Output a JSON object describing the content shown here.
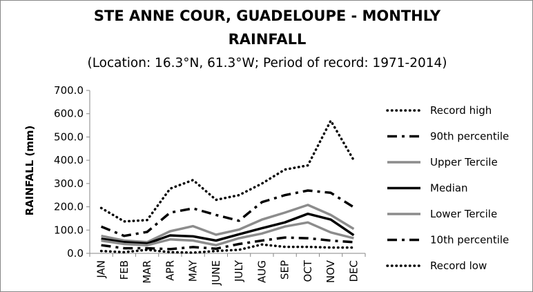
{
  "chart_data": {
    "type": "line",
    "title_line1": "STE ANNE COUR, GUADELOUPE - MONTHLY",
    "title_line2": "RAINFALL",
    "subtitle": "(Location: 16.3°N, 61.3°W; Period of record: 1971-2014)",
    "ylabel": "RAINFALL (mm)",
    "xlabel": "",
    "ylim": [
      0,
      700
    ],
    "y_ticks": [
      "0.0",
      "100.0",
      "200.0",
      "300.0",
      "400.0",
      "500.0",
      "600.0",
      "700.0"
    ],
    "categories": [
      "JAN",
      "FEB",
      "MAR",
      "APR",
      "MAY",
      "JUNE",
      "JULY",
      "AUG",
      "SEP",
      "OCT",
      "NOV",
      "DEC"
    ],
    "grid": false,
    "legend_position": "right",
    "series": [
      {
        "name": "Record high",
        "style": "dotted",
        "color": "#000000",
        "values": [
          195,
          137,
          143,
          278,
          315,
          230,
          250,
          300,
          360,
          378,
          570,
          400
        ]
      },
      {
        "name": "90th percentile",
        "style": "dashdot",
        "color": "#000000",
        "values": [
          115,
          75,
          92,
          175,
          193,
          165,
          140,
          220,
          250,
          270,
          260,
          198
        ]
      },
      {
        "name": "Upper Tercile",
        "style": "solid",
        "color": "#8c8c8c",
        "values": [
          75,
          55,
          48,
          95,
          117,
          80,
          102,
          145,
          175,
          208,
          165,
          105
        ]
      },
      {
        "name": "Median",
        "style": "solid",
        "color": "#000000",
        "values": [
          63,
          48,
          42,
          77,
          73,
          55,
          82,
          108,
          133,
          170,
          145,
          78
        ]
      },
      {
        "name": "Lower Tercile",
        "style": "solid",
        "color": "#8c8c8c",
        "values": [
          55,
          40,
          35,
          60,
          55,
          35,
          65,
          85,
          115,
          133,
          90,
          65
        ]
      },
      {
        "name": "10th percentile",
        "style": "dashdot",
        "color": "#000000",
        "values": [
          35,
          22,
          22,
          18,
          27,
          20,
          40,
          55,
          68,
          65,
          55,
          48
        ]
      },
      {
        "name": "Record low",
        "style": "dotted",
        "color": "#000000",
        "values": [
          10,
          5,
          15,
          5,
          3,
          10,
          15,
          38,
          28,
          28,
          25,
          25
        ]
      }
    ]
  }
}
